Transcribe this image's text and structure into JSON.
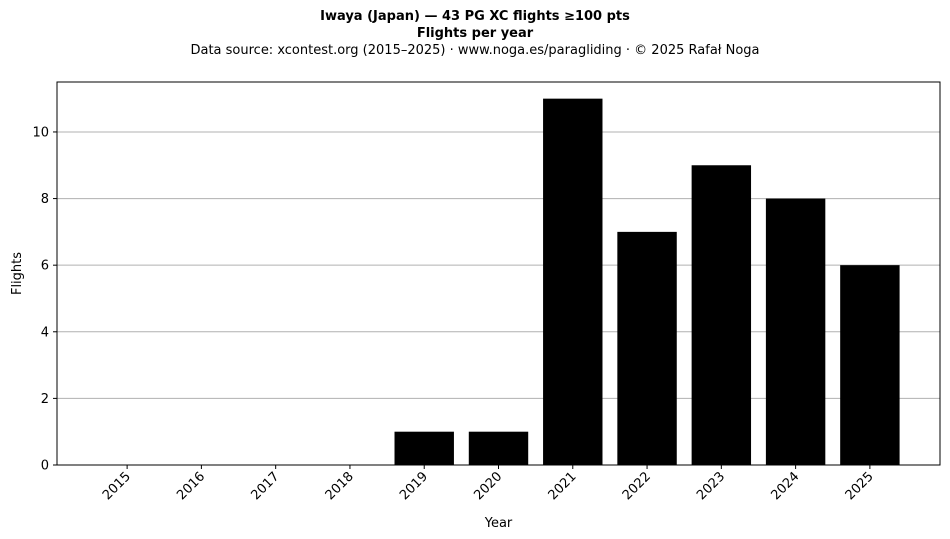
{
  "chart_data": {
    "type": "bar",
    "title": "Iwaya (Japan)  —  43 PG XC flights ≥100 pts",
    "subtitle": "Flights per year",
    "source_line": "Data source: xcontest.org (2015–2025)  ·  www.noga.es/paragliding  ·  © 2025 Rafał Noga",
    "xlabel": "Year",
    "ylabel": "Flights",
    "categories": [
      "2015",
      "2016",
      "2017",
      "2018",
      "2019",
      "2020",
      "2021",
      "2022",
      "2023",
      "2024",
      "2025"
    ],
    "values": [
      0,
      0,
      0,
      0,
      1,
      1,
      11,
      7,
      9,
      8,
      6
    ],
    "ylim": [
      0,
      11.5
    ],
    "yticks": [
      0,
      2,
      4,
      6,
      8,
      10
    ],
    "grid": "horizontal",
    "bar_color": "#000000",
    "grid_color": "#b0b0b0"
  }
}
